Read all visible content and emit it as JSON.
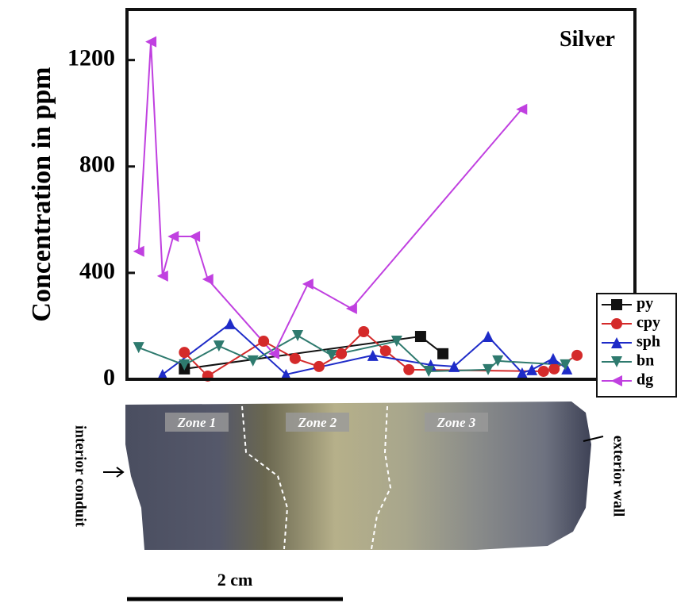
{
  "chart_data": {
    "type": "line",
    "title": "Silver",
    "y_label": "Concentration in ppm",
    "xlim": [
      0,
      100
    ],
    "ylim": [
      0,
      1390
    ],
    "yticks": [
      0,
      400,
      800,
      1200
    ],
    "legend": "right",
    "series": [
      {
        "name": "py",
        "color": "#111111",
        "marker": "square",
        "x": [
          11.3,
          57.8,
          62.2
        ],
        "values": [
          39,
          161,
          96
        ]
      },
      {
        "name": "cpy",
        "color": "#d42a2a",
        "marker": "circle",
        "x": [
          11.3,
          15.9,
          26.9,
          33.1,
          37.8,
          42.2,
          46.6,
          50.9,
          55.5,
          82.0,
          84.1,
          88.6
        ],
        "values": [
          101,
          12,
          143,
          78,
          48,
          96,
          179,
          107,
          36,
          30,
          39,
          90
        ]
      },
      {
        "name": "sph",
        "color": "#1e2bc8",
        "marker": "up",
        "x": [
          7.0,
          20.3,
          31.3,
          48.4,
          59.8,
          64.4,
          71.1,
          77.8,
          79.7,
          83.9,
          86.6
        ],
        "values": [
          18,
          209,
          18,
          90,
          54,
          48,
          161,
          24,
          36,
          78,
          39
        ]
      },
      {
        "name": "bn",
        "color": "#2e7a6e",
        "marker": "down",
        "x": [
          2.3,
          11.3,
          18.1,
          24.8,
          33.6,
          40.3,
          53.1,
          59.4,
          71.1,
          73.0,
          86.3
        ],
        "values": [
          119,
          54,
          125,
          69,
          164,
          90,
          143,
          30,
          36,
          69,
          54
        ]
      },
      {
        "name": "dg",
        "color": "#c040e0",
        "marker": "left",
        "x": [
          2.3,
          4.7,
          7.0,
          9.1,
          13.3,
          15.9,
          28.9,
          35.6,
          44.2,
          77.7
        ],
        "values": [
          481,
          1269,
          388,
          537,
          537,
          376,
          96,
          358,
          266,
          1015
        ]
      }
    ],
    "photo": {
      "zones": [
        "Zone 1",
        "Zone 2",
        "Zone 3"
      ],
      "left_label": "interior conduit",
      "right_label": "exterior wall",
      "scale_label": "2 cm"
    }
  }
}
